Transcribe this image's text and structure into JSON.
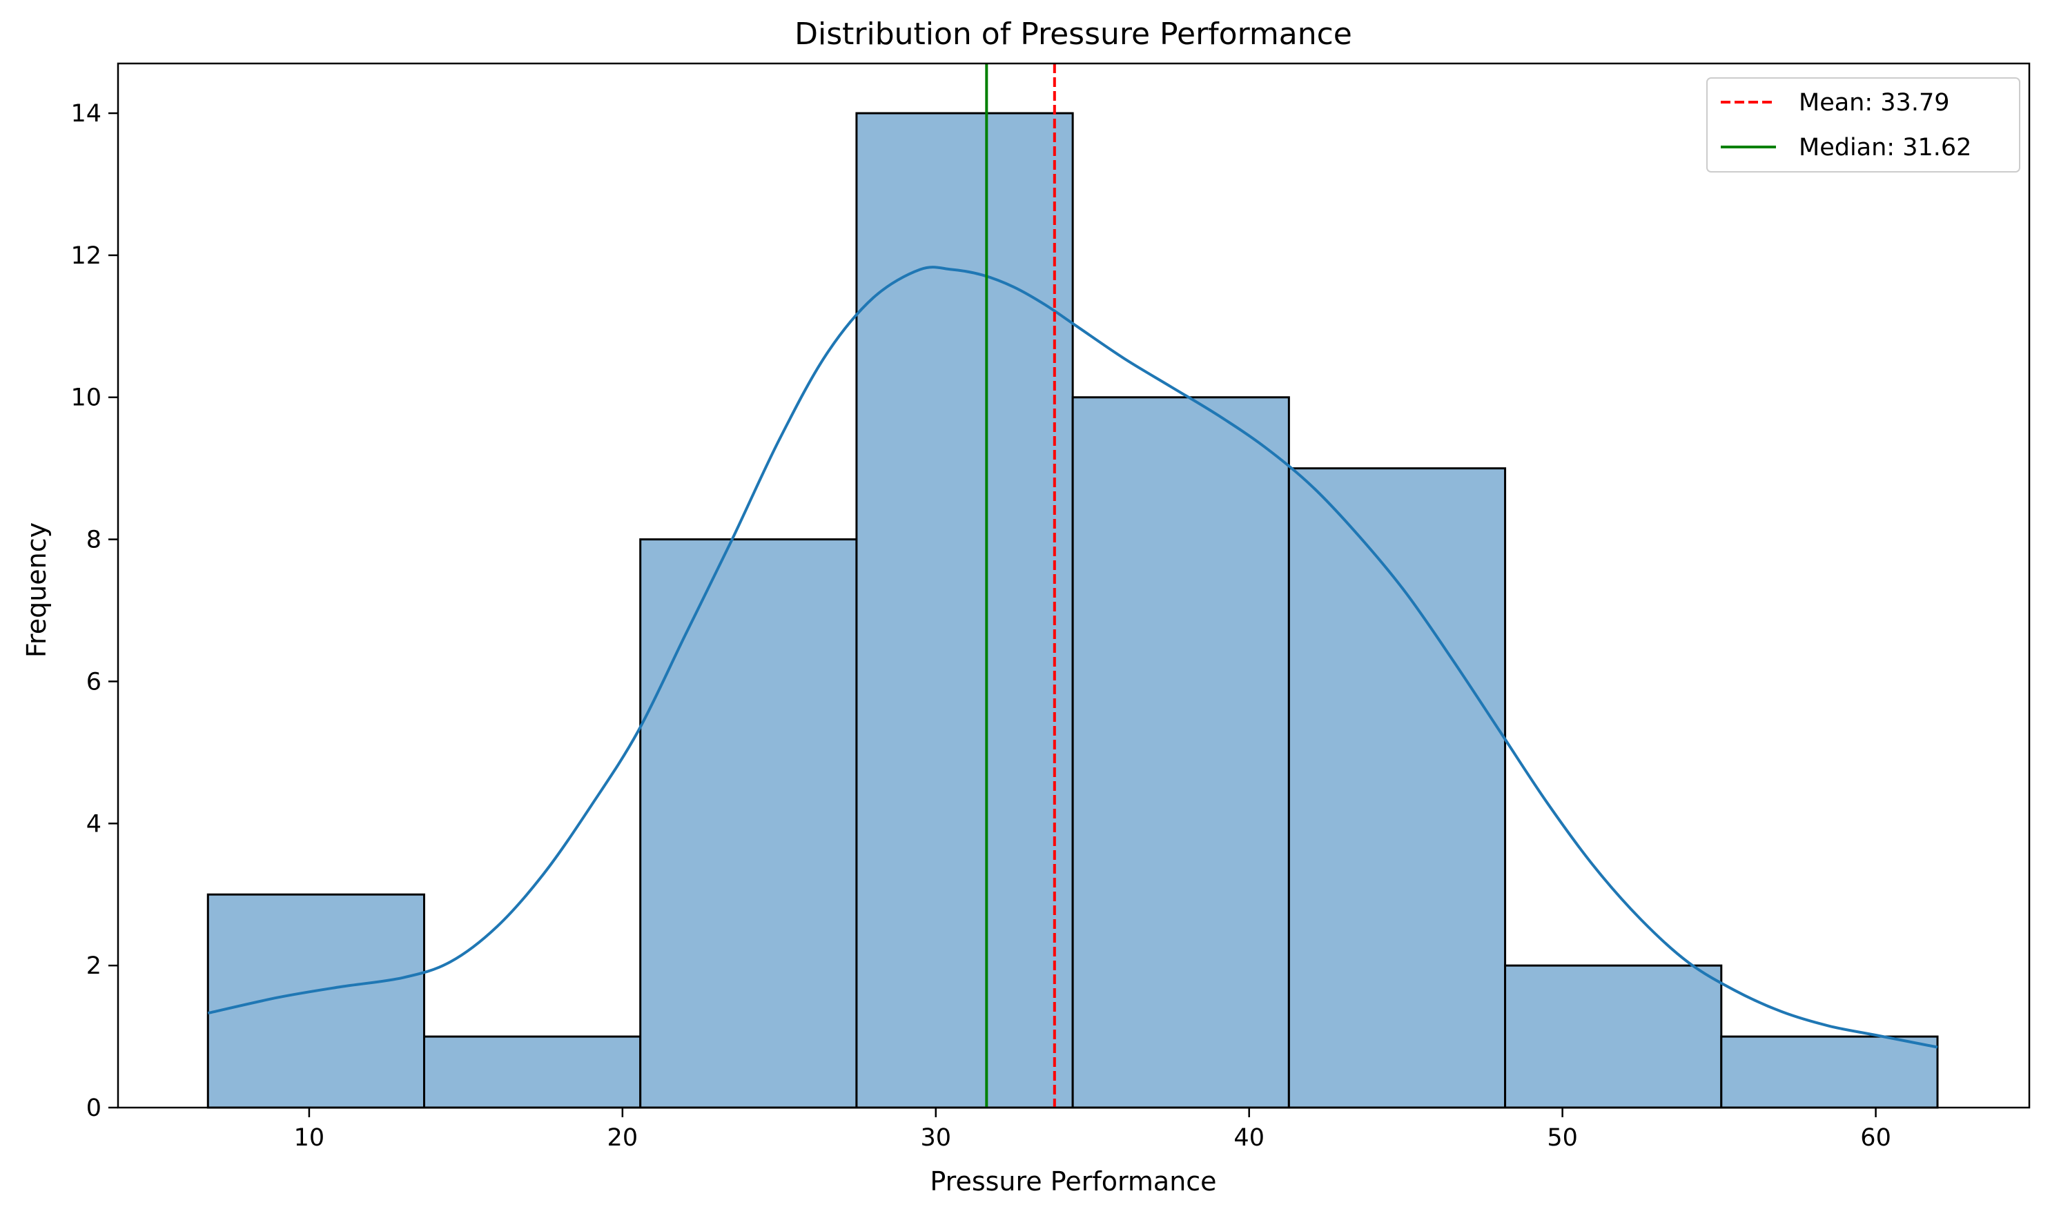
{
  "chart_data": {
    "type": "bar",
    "subtype": "histogram",
    "title": "Distribution of Pressure Performance",
    "xlabel": "Pressure Performance",
    "ylabel": "Frequency",
    "xlim": [
      3.9,
      64.9
    ],
    "ylim": [
      0,
      14.7
    ],
    "x_ticks": [
      10,
      20,
      30,
      40,
      50,
      60
    ],
    "y_ticks": [
      0,
      2,
      4,
      6,
      8,
      10,
      12,
      14
    ],
    "bin_edges": [
      6.77,
      13.67,
      20.57,
      27.47,
      34.37,
      41.27,
      48.17,
      55.07,
      61.97
    ],
    "values": [
      3,
      1,
      8,
      14,
      10,
      9,
      2,
      1
    ],
    "bar_color": "#8fb8d9",
    "bar_edge_color": "#000000",
    "grid": false,
    "kde": {
      "color": "#1f77b4",
      "x": [
        6.77,
        9.0,
        11.0,
        13.0,
        14.5,
        16.0,
        17.5,
        19.0,
        20.5,
        22.0,
        23.5,
        25.0,
        26.5,
        28.0,
        29.5,
        30.5,
        31.5,
        32.5,
        33.5,
        34.5,
        36.0,
        37.5,
        39.0,
        40.5,
        42.0,
        43.5,
        45.0,
        46.5,
        48.0,
        49.5,
        51.0,
        52.5,
        54.0,
        55.5,
        57.0,
        58.5,
        60.0,
        61.97
      ],
      "y": [
        1.33,
        1.55,
        1.7,
        1.83,
        2.05,
        2.55,
        3.3,
        4.25,
        5.3,
        6.65,
        8.0,
        9.4,
        10.6,
        11.4,
        11.8,
        11.8,
        11.72,
        11.55,
        11.3,
        11.0,
        10.55,
        10.15,
        9.75,
        9.3,
        8.75,
        8.05,
        7.25,
        6.3,
        5.3,
        4.3,
        3.4,
        2.65,
        2.05,
        1.65,
        1.35,
        1.15,
        1.02,
        0.85
      ]
    },
    "mean": 33.79,
    "median": 31.62,
    "reference_lines": [
      {
        "name": "Mean: 33.79",
        "value": 33.79,
        "color": "#ff0000",
        "style": "dashed"
      },
      {
        "name": "Median: 31.62",
        "value": 31.62,
        "color": "#008000",
        "style": "solid"
      }
    ],
    "legend": {
      "placement": "top-right",
      "entries": [
        "Mean: 33.79",
        "Median: 31.62"
      ]
    }
  }
}
